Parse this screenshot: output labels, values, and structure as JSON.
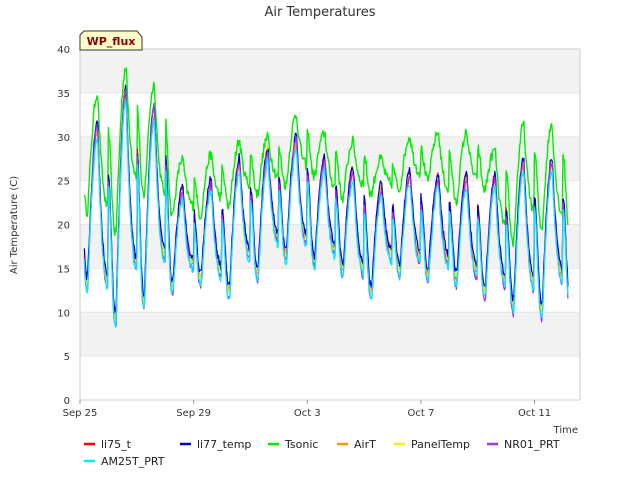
{
  "chart_data": {
    "type": "line",
    "title": "Air Temperatures",
    "xlabel": "Time",
    "ylabel": "Air Temperature (C)",
    "badge": "WP_flux",
    "ylim": [
      0,
      40
    ],
    "yticks": [
      0,
      5,
      10,
      15,
      20,
      25,
      30,
      35,
      40
    ],
    "xlim": [
      0,
      17.6
    ],
    "xticks": [
      {
        "value": 0,
        "label": "Sep 25"
      },
      {
        "value": 4,
        "label": "Sep 29"
      },
      {
        "value": 8,
        "label": "Oct 3"
      },
      {
        "value": 12,
        "label": "Oct 7"
      },
      {
        "value": 16,
        "label": "Oct 11"
      }
    ],
    "grid": "alternating horizontal bands",
    "legend_position": "bottom",
    "x_unit": "days since Sep 25",
    "daily_tsonic": [
      [
        21.5,
        35.0
      ],
      [
        19.0,
        38.0
      ],
      [
        23.0,
        36.0
      ],
      [
        21.0,
        27.5
      ],
      [
        21.0,
        28.0
      ],
      [
        22.0,
        29.5
      ],
      [
        23.5,
        30.0
      ],
      [
        24.5,
        32.5
      ],
      [
        25.5,
        30.5
      ],
      [
        23.0,
        29.5
      ],
      [
        23.5,
        27.5
      ],
      [
        24.0,
        30.0
      ],
      [
        25.0,
        30.5
      ],
      [
        22.5,
        30.5
      ],
      [
        24.0,
        28.5
      ],
      [
        18.0,
        31.5
      ],
      [
        19.5,
        31.5
      ],
      [
        19.0,
        27.5
      ],
      [
        20.5,
        28.5
      ]
    ],
    "daily_other": [
      [
        13.0,
        31.0
      ],
      [
        9.0,
        35.0
      ],
      [
        11.0,
        33.0
      ],
      [
        12.5,
        23.5
      ],
      [
        13.5,
        24.5
      ],
      [
        12.0,
        27.0
      ],
      [
        14.0,
        28.0
      ],
      [
        16.0,
        29.5
      ],
      [
        15.5,
        27.0
      ],
      [
        14.5,
        26.0
      ],
      [
        12.0,
        24.0
      ],
      [
        14.5,
        25.5
      ],
      [
        14.0,
        25.0
      ],
      [
        13.5,
        25.0
      ],
      [
        12.0,
        25.0
      ],
      [
        10.5,
        27.0
      ],
      [
        10.0,
        27.0
      ],
      [
        11.0,
        24.0
      ],
      [
        13.0,
        26.0
      ]
    ],
    "series": [
      {
        "name": "li75_t",
        "color": "#ff0000",
        "offset": 0.6,
        "amp": 1.0
      },
      {
        "name": "li77_temp",
        "color": "#0000cc",
        "offset": 0.9,
        "amp": 0.98
      },
      {
        "name": "Tsonic",
        "color": "#00ee00",
        "offset": 0.0,
        "amp": 1.0
      },
      {
        "name": "AirT",
        "color": "#ff9900",
        "offset": 0.2,
        "amp": 0.95
      },
      {
        "name": "PanelTemp",
        "color": "#ffee00",
        "offset": 0.4,
        "amp": 1.02
      },
      {
        "name": "NR01_PRT",
        "color": "#9933ff",
        "offset": -0.3,
        "amp": 1.06
      },
      {
        "name": "AM25T_PRT",
        "color": "#00eeff",
        "offset": -0.6,
        "amp": 0.97
      }
    ]
  }
}
